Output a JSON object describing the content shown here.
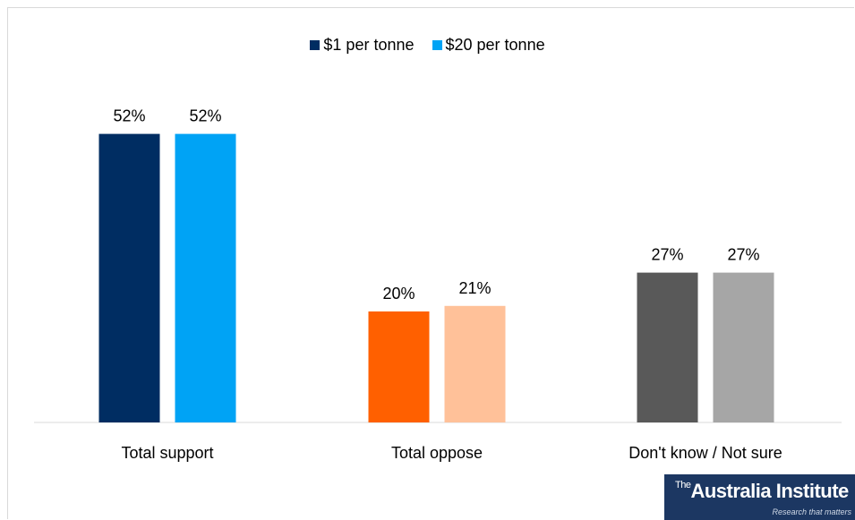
{
  "chart_data": {
    "type": "bar",
    "categories": [
      "Total support",
      "Total oppose",
      "Don't know / Not sure"
    ],
    "series": [
      {
        "name": "$1 per tonne",
        "values": [
          52,
          20,
          27
        ],
        "labels": [
          "52%",
          "20%",
          "27%"
        ]
      },
      {
        "name": "$20 per tonne",
        "values": [
          52,
          21,
          27
        ],
        "labels": [
          "52%",
          "21%",
          "27%"
        ]
      }
    ],
    "legend_colors": [
      "#002d62",
      "#00a3f5"
    ],
    "bar_colors": [
      [
        "#002d62",
        "#00a3f5"
      ],
      [
        "#ff6000",
        "#ffc199"
      ],
      [
        "#595959",
        "#a6a6a6"
      ]
    ],
    "ylim": [
      0,
      60
    ],
    "legend_position": "top-center",
    "grid": false
  },
  "logo": {
    "prefix": "The",
    "name": "Australia Institute",
    "tagline": "Research that matters"
  }
}
